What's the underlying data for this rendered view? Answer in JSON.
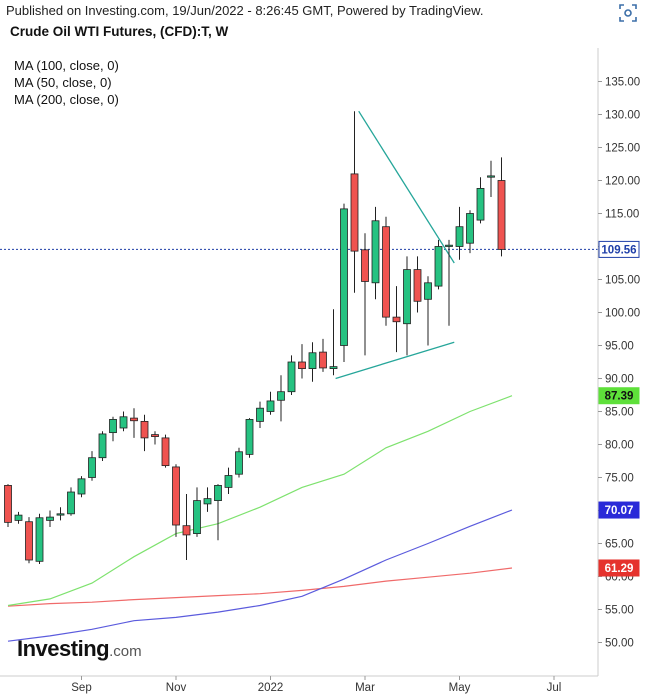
{
  "header": {
    "published": "Published on Investing.com, 19/Jun/2022 - 8:26:45 GMT, Powered by TradingView.",
    "title": "Crude Oil WTI Futures, (CFD):T, W",
    "indicators": [
      "MA (100, close, 0)",
      "MA (50, close, 0)",
      "MA (200, close, 0)"
    ],
    "icon": "focus-frame-icon"
  },
  "logo": {
    "brand": "Investing",
    "suffix": ".com"
  },
  "colors": {
    "up": "#26c281",
    "down": "#ef5350",
    "ma100": "#5b5bdd",
    "ma50": "#7ee26e",
    "ma200": "#f06a6a",
    "last": "#1f3fa8",
    "trendline": "#26a69a",
    "axis_text": "#333333"
  },
  "chart_data": {
    "type": "candlestick",
    "interval": "W",
    "ylim": [
      47,
      140
    ],
    "y_ticks": [
      "50.00",
      "55.00",
      "60.00",
      "65.00",
      "70.00",
      "75.00",
      "80.00",
      "85.00",
      "90.00",
      "95.00",
      "100.00",
      "105.00",
      "110.00",
      "115.00",
      "120.00",
      "125.00",
      "130.00",
      "135.00"
    ],
    "x_ticks": [
      {
        "label": "Sep",
        "week": 7
      },
      {
        "label": "Nov",
        "week": 16
      },
      {
        "label": "2022",
        "week": 25
      },
      {
        "label": "Mar",
        "week": 34
      },
      {
        "label": "May",
        "week": 43
      },
      {
        "label": "Jul",
        "week": 52
      }
    ],
    "candles": [
      {
        "o": 73.8,
        "h": 74.0,
        "l": 67.5,
        "c": 68.2
      },
      {
        "o": 68.5,
        "h": 69.8,
        "l": 68.0,
        "c": 69.3
      },
      {
        "o": 68.3,
        "h": 69.0,
        "l": 62.0,
        "c": 62.5
      },
      {
        "o": 62.3,
        "h": 69.5,
        "l": 61.9,
        "c": 68.9
      },
      {
        "o": 68.5,
        "h": 70.0,
        "l": 67.5,
        "c": 69.0
      },
      {
        "o": 69.3,
        "h": 70.5,
        "l": 68.5,
        "c": 69.5
      },
      {
        "o": 69.5,
        "h": 73.5,
        "l": 69.2,
        "c": 72.8
      },
      {
        "o": 72.5,
        "h": 75.2,
        "l": 72.0,
        "c": 74.8
      },
      {
        "o": 75.0,
        "h": 79.0,
        "l": 74.5,
        "c": 78.0
      },
      {
        "o": 78.0,
        "h": 82.0,
        "l": 77.5,
        "c": 81.6
      },
      {
        "o": 81.8,
        "h": 84.2,
        "l": 80.5,
        "c": 83.8
      },
      {
        "o": 82.5,
        "h": 85.0,
        "l": 82.0,
        "c": 84.2
      },
      {
        "o": 84.0,
        "h": 85.5,
        "l": 81.0,
        "c": 83.6
      },
      {
        "o": 83.5,
        "h": 84.5,
        "l": 79.0,
        "c": 81.0
      },
      {
        "o": 81.5,
        "h": 82.0,
        "l": 80.0,
        "c": 81.2
      },
      {
        "o": 81.0,
        "h": 81.5,
        "l": 76.5,
        "c": 76.8
      },
      {
        "o": 76.6,
        "h": 77.0,
        "l": 66.0,
        "c": 67.8
      },
      {
        "o": 67.7,
        "h": 72.5,
        "l": 62.5,
        "c": 66.3
      },
      {
        "o": 66.5,
        "h": 73.5,
        "l": 66.0,
        "c": 71.5
      },
      {
        "o": 71.0,
        "h": 73.5,
        "l": 69.8,
        "c": 71.8
      },
      {
        "o": 71.5,
        "h": 74.0,
        "l": 65.5,
        "c": 73.8
      },
      {
        "o": 73.5,
        "h": 76.5,
        "l": 72.5,
        "c": 75.3
      },
      {
        "o": 75.5,
        "h": 79.5,
        "l": 75.0,
        "c": 78.9
      },
      {
        "o": 78.5,
        "h": 84.0,
        "l": 78.0,
        "c": 83.8
      },
      {
        "o": 83.5,
        "h": 86.5,
        "l": 82.5,
        "c": 85.5
      },
      {
        "o": 85.0,
        "h": 88.0,
        "l": 84.5,
        "c": 86.6
      },
      {
        "o": 86.7,
        "h": 90.5,
        "l": 83.5,
        "c": 88.0
      },
      {
        "o": 88.0,
        "h": 93.5,
        "l": 87.5,
        "c": 92.5
      },
      {
        "o": 92.5,
        "h": 95.2,
        "l": 90.0,
        "c": 91.5
      },
      {
        "o": 91.5,
        "h": 95.5,
        "l": 89.5,
        "c": 93.9
      },
      {
        "o": 94.0,
        "h": 96.0,
        "l": 91.0,
        "c": 91.6
      },
      {
        "o": 91.5,
        "h": 100.5,
        "l": 90.5,
        "c": 91.8
      },
      {
        "o": 95.0,
        "h": 116.5,
        "l": 92.5,
        "c": 115.7
      },
      {
        "o": 121.0,
        "h": 130.5,
        "l": 103.0,
        "c": 109.3
      },
      {
        "o": 109.5,
        "h": 112.0,
        "l": 93.5,
        "c": 104.7
      },
      {
        "o": 104.5,
        "h": 116.0,
        "l": 102.0,
        "c": 113.9
      },
      {
        "o": 113.0,
        "h": 114.5,
        "l": 98.0,
        "c": 99.3
      },
      {
        "o": 99.3,
        "h": 104.0,
        "l": 94.0,
        "c": 98.6
      },
      {
        "o": 98.3,
        "h": 108.5,
        "l": 93.5,
        "c": 106.5
      },
      {
        "o": 106.5,
        "h": 108.5,
        "l": 100.0,
        "c": 101.7
      },
      {
        "o": 102.0,
        "h": 105.5,
        "l": 95.0,
        "c": 104.5
      },
      {
        "o": 104.0,
        "h": 111.0,
        "l": 103.5,
        "c": 110.0
      },
      {
        "o": 110.0,
        "h": 111.0,
        "l": 98.0,
        "c": 110.2
      },
      {
        "o": 110.0,
        "h": 116.0,
        "l": 108.0,
        "c": 113.0
      },
      {
        "o": 110.5,
        "h": 115.5,
        "l": 109.0,
        "c": 115.0
      },
      {
        "o": 114.0,
        "h": 120.5,
        "l": 113.5,
        "c": 118.8
      },
      {
        "o": 120.5,
        "h": 123.0,
        "l": 117.5,
        "c": 120.7
      },
      {
        "o": 120.0,
        "h": 123.5,
        "l": 108.5,
        "c": 109.56
      }
    ],
    "ma50": [
      [
        0,
        55.6
      ],
      [
        4,
        56.6
      ],
      [
        8,
        59
      ],
      [
        12,
        63
      ],
      [
        16,
        66.5
      ],
      [
        20,
        68
      ],
      [
        24,
        70.5
      ],
      [
        28,
        73.5
      ],
      [
        32,
        75.5
      ],
      [
        36,
        79.5
      ],
      [
        40,
        82
      ],
      [
        44,
        85
      ],
      [
        48,
        87.39
      ]
    ],
    "ma100": [
      [
        0,
        50.2
      ],
      [
        4,
        51
      ],
      [
        8,
        52
      ],
      [
        12,
        53.3
      ],
      [
        16,
        53.8
      ],
      [
        20,
        54.6
      ],
      [
        24,
        55.6
      ],
      [
        28,
        57
      ],
      [
        32,
        59.6
      ],
      [
        36,
        62.5
      ],
      [
        40,
        65
      ],
      [
        44,
        67.6
      ],
      [
        48,
        70.07
      ]
    ],
    "ma200": [
      [
        0,
        55.5
      ],
      [
        4,
        55.9
      ],
      [
        8,
        56.1
      ],
      [
        12,
        56.5
      ],
      [
        16,
        56.8
      ],
      [
        20,
        57.1
      ],
      [
        24,
        57.4
      ],
      [
        28,
        57.9
      ],
      [
        32,
        58.5
      ],
      [
        36,
        59.3
      ],
      [
        40,
        59.9
      ],
      [
        44,
        60.5
      ],
      [
        48,
        61.29
      ]
    ],
    "trendlines": [
      [
        [
          33.4,
          130.5
        ],
        [
          42.5,
          107.5
        ]
      ],
      [
        [
          31.2,
          90.0
        ],
        [
          42.5,
          95.5
        ]
      ]
    ],
    "last_price": "109.56",
    "badges": [
      {
        "label": "109.56",
        "value": 109.56,
        "bg": "#ffffff",
        "fg": "#1f3fa8",
        "border": "#1f3fa8"
      },
      {
        "label": "87.39",
        "value": 87.39,
        "bg": "#5ee03a",
        "fg": "#111111"
      },
      {
        "label": "70.07",
        "value": 70.07,
        "bg": "#2a2ad8",
        "fg": "#ffffff"
      },
      {
        "label": "61.29",
        "value": 61.29,
        "bg": "#e5322d",
        "fg": "#ffffff"
      }
    ]
  }
}
